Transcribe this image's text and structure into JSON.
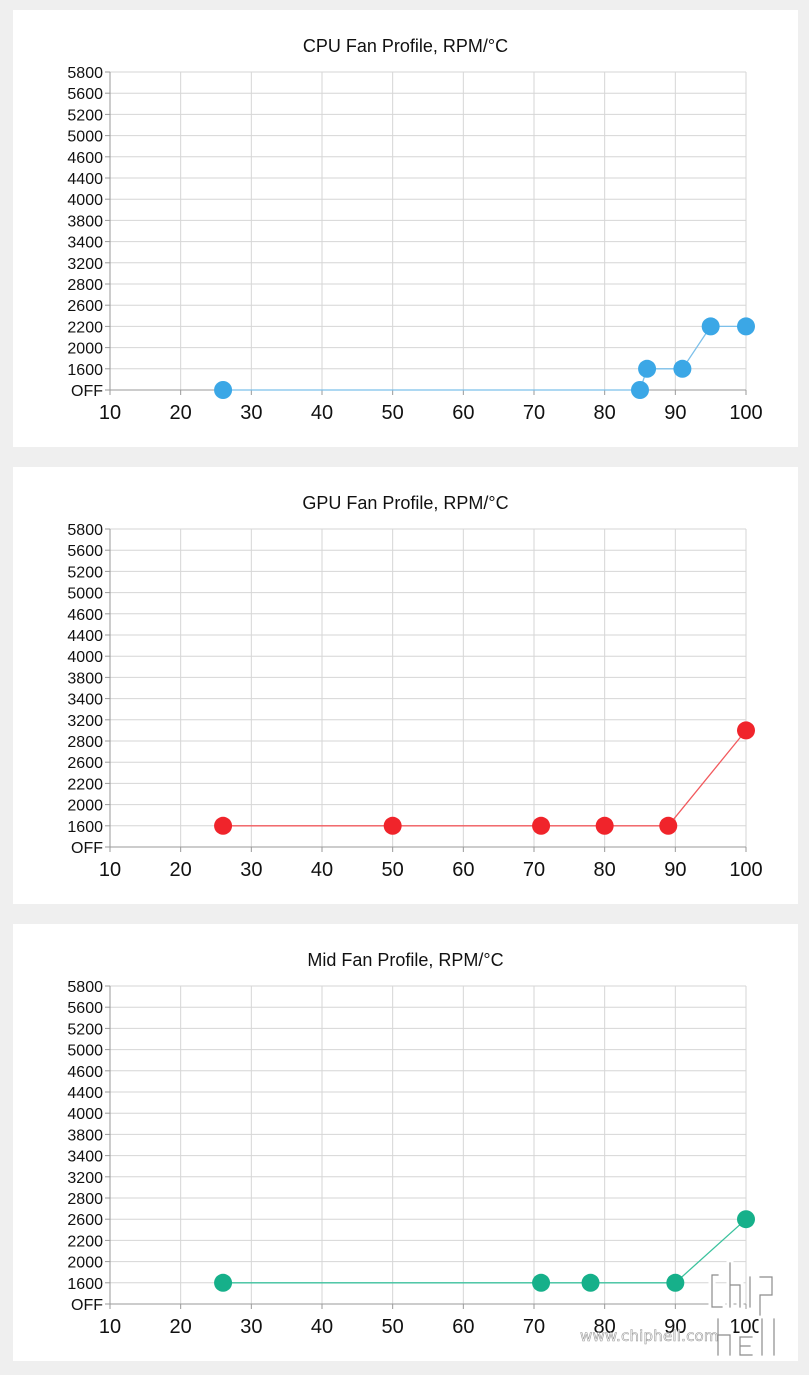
{
  "charts": [
    {
      "id": "cpu",
      "title": "CPU Fan Profile, RPM/°C",
      "color": "#3ba7e6",
      "lineColor": "#7cc0ea",
      "xTicks": [
        "10",
        "20",
        "30",
        "40",
        "50",
        "60",
        "70",
        "80",
        "90",
        "100"
      ],
      "yTicks": [
        "OFF",
        "1600",
        "2000",
        "2200",
        "2600",
        "2800",
        "3200",
        "3400",
        "3800",
        "4000",
        "4400",
        "4600",
        "5000",
        "5200",
        "5600",
        "5800"
      ],
      "points": [
        [
          26,
          "OFF"
        ],
        [
          85,
          "OFF"
        ],
        [
          86,
          "1600"
        ],
        [
          91,
          "1600"
        ],
        [
          95,
          "2200"
        ],
        [
          100,
          "2200"
        ]
      ]
    },
    {
      "id": "gpu",
      "title": "GPU Fan Profile, RPM/°C",
      "color": "#f0242b",
      "lineColor": "#f25a5e",
      "xTicks": [
        "10",
        "20",
        "30",
        "40",
        "50",
        "60",
        "70",
        "80",
        "90",
        "100"
      ],
      "yTicks": [
        "OFF",
        "1600",
        "2000",
        "2200",
        "2600",
        "2800",
        "3200",
        "3400",
        "3800",
        "4000",
        "4400",
        "4600",
        "5000",
        "5200",
        "5600",
        "5800"
      ],
      "points": [
        [
          26,
          "1600"
        ],
        [
          50,
          "1600"
        ],
        [
          71,
          "1600"
        ],
        [
          80,
          "1600"
        ],
        [
          89,
          "1600"
        ],
        [
          100,
          "3000"
        ]
      ]
    },
    {
      "id": "mid",
      "title": "Mid Fan Profile, RPM/°C",
      "color": "#16b08a",
      "lineColor": "#3cc29e",
      "xTicks": [
        "10",
        "20",
        "30",
        "40",
        "50",
        "60",
        "70",
        "80",
        "90",
        "100"
      ],
      "yTicks": [
        "OFF",
        "1600",
        "2000",
        "2200",
        "2600",
        "2800",
        "3200",
        "3400",
        "3800",
        "4000",
        "4400",
        "4600",
        "5000",
        "5200",
        "5600",
        "5800"
      ],
      "points": [
        [
          26,
          "1600"
        ],
        [
          71,
          "1600"
        ],
        [
          78,
          "1600"
        ],
        [
          90,
          "1600"
        ],
        [
          100,
          "2600"
        ]
      ]
    }
  ],
  "chart_data": [
    {
      "type": "line",
      "title": "CPU Fan Profile, RPM/°C",
      "xlim": [
        10,
        100
      ],
      "y_categories": [
        "OFF",
        "1600",
        "2000",
        "2200",
        "2600",
        "2800",
        "3200",
        "3400",
        "3800",
        "4000",
        "4400",
        "4600",
        "5000",
        "5200",
        "5600",
        "5800"
      ],
      "x": [
        26,
        85,
        86,
        91,
        95,
        100
      ],
      "y": [
        "OFF",
        "OFF",
        "1600",
        "1600",
        "2200",
        "2200"
      ],
      "grid": true
    },
    {
      "type": "line",
      "title": "GPU Fan Profile, RPM/°C",
      "xlim": [
        10,
        100
      ],
      "y_categories": [
        "OFF",
        "1600",
        "2000",
        "2200",
        "2600",
        "2800",
        "3200",
        "3400",
        "3800",
        "4000",
        "4400",
        "4600",
        "5000",
        "5200",
        "5600",
        "5800"
      ],
      "x": [
        26,
        50,
        71,
        80,
        89,
        100
      ],
      "y": [
        "1600",
        "1600",
        "1600",
        "1600",
        "1600",
        "3000"
      ],
      "grid": true
    },
    {
      "type": "line",
      "title": "Mid Fan Profile, RPM/°C",
      "xlim": [
        10,
        100
      ],
      "y_categories": [
        "OFF",
        "1600",
        "2000",
        "2200",
        "2600",
        "2800",
        "3200",
        "3400",
        "3800",
        "4000",
        "4400",
        "4600",
        "5000",
        "5200",
        "5600",
        "5800"
      ],
      "x": [
        26,
        71,
        78,
        90,
        100
      ],
      "y": [
        "1600",
        "1600",
        "1600",
        "1600",
        "2600"
      ],
      "grid": true
    }
  ],
  "watermark": {
    "text": "www.chiphell.com",
    "logo": "chiphell"
  }
}
